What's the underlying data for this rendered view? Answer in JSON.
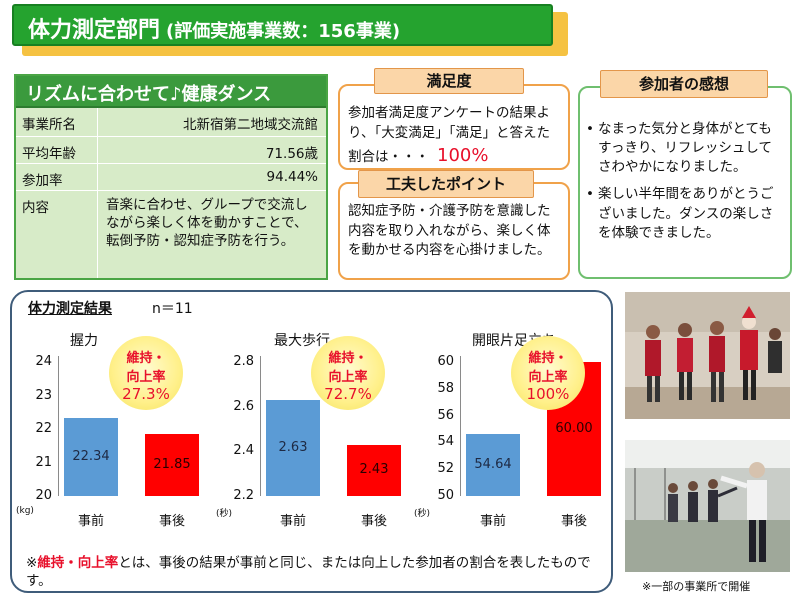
{
  "header": {
    "title": "体力測定部門",
    "subtitle": "(評価実施事業数：156事業)"
  },
  "program": {
    "title": "リズムに合わせて♪健康ダンス",
    "rows": [
      {
        "label": "事業所名",
        "value": "北新宿第二地域交流館"
      },
      {
        "label": "平均年齢",
        "value": "71.56歳"
      },
      {
        "label": "参加率",
        "value": "94.44%"
      },
      {
        "label": "内容",
        "value": "音楽に合わせ、グループで交流しながら楽しく体を動かすことで、転倒予防・認知症予防を行う。"
      }
    ]
  },
  "satisfaction": {
    "title": "満足度",
    "text": "参加者満足度アンケートの結果より、「大変満足」「満足」と答えた割合は・・・",
    "value": "100%"
  },
  "ingenuity": {
    "title": "工夫したポイント",
    "text": "認知症予防・介護予防を意識した内容を取り入れながら、楽しく体を動かせる内容を心掛けました。"
  },
  "impressions": {
    "title": "参加者の感想",
    "items": [
      "なまった気分と身体がとてもすっきり、リフレッシュしてさわやかになりました。",
      "楽しい半年間をありがとうございました。ダンスの楽しさを体験できました。"
    ]
  },
  "results": {
    "title": "体力測定結果",
    "n": "n＝11",
    "badge_line1": "維持・",
    "badge_line2": "向上率",
    "footnote_mark": "※",
    "footnote_term": "維持・向上率",
    "footnote_rest": "とは、事後の結果が事前と同じ、または向上した参加者の割合を表したものです。"
  },
  "photos": {
    "note": "※一部の事業所で開催"
  },
  "colors": {
    "header_green": "#25a32f",
    "before_bar": "#5b9bd5",
    "after_bar": "#ff0000",
    "accent_red": "#e8102b"
  },
  "chart_data": [
    {
      "type": "bar",
      "title": "握力",
      "categories": [
        "事前",
        "事後"
      ],
      "values": [
        22.34,
        21.85
      ],
      "value_labels": [
        "22.34",
        "21.85"
      ],
      "ylim": [
        20,
        24
      ],
      "yticks": [
        "24",
        "23",
        "22",
        "21",
        "20"
      ],
      "unit": "(kg)",
      "rate": "27.3%"
    },
    {
      "type": "bar",
      "title": "最大歩行",
      "categories": [
        "事前",
        "事後"
      ],
      "values": [
        2.63,
        2.43
      ],
      "value_labels": [
        "2.63",
        "2.43"
      ],
      "ylim": [
        2.2,
        2.8
      ],
      "yticks": [
        "2.8",
        "2.6",
        "2.4",
        "2.2"
      ],
      "unit": "(秒)",
      "rate": "72.7%"
    },
    {
      "type": "bar",
      "title": "開眼片足立ち",
      "categories": [
        "事前",
        "事後"
      ],
      "values": [
        54.64,
        60.0
      ],
      "value_labels": [
        "54.64",
        "60.00"
      ],
      "ylim": [
        50,
        60
      ],
      "yticks": [
        "60",
        "58",
        "56",
        "54",
        "52",
        "50"
      ],
      "unit": "(秒)",
      "rate": "100%"
    }
  ]
}
